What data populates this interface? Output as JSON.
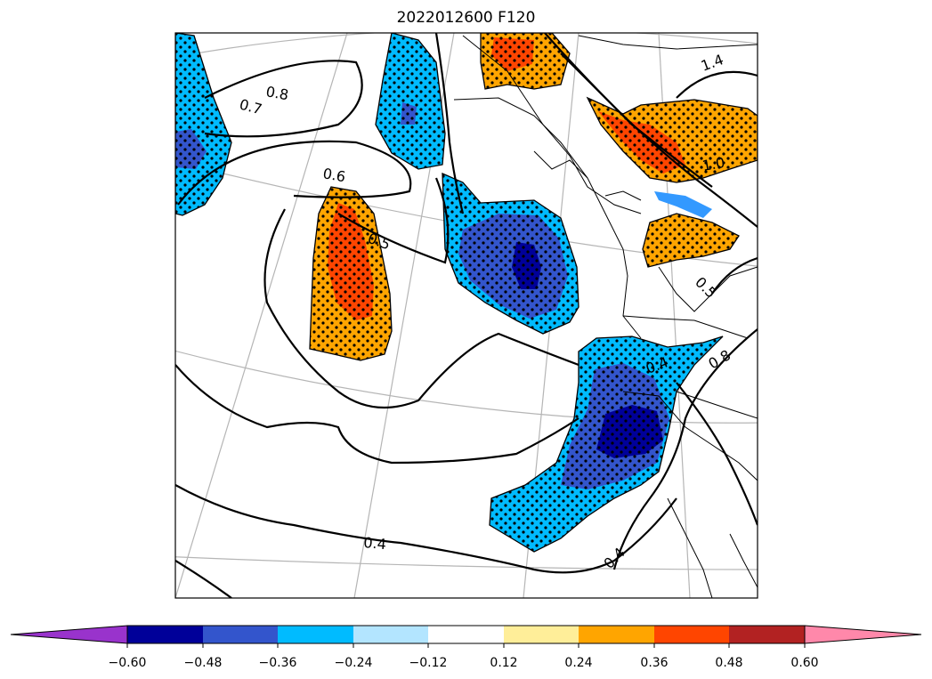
{
  "figure": {
    "title": "2022012600 F120"
  },
  "contour_labels": [
    {
      "text": "0.8"
    },
    {
      "text": "0.7"
    },
    {
      "text": "0.6"
    },
    {
      "text": "0.5"
    },
    {
      "text": "0.4"
    },
    {
      "text": "0.4"
    },
    {
      "text": "1.4"
    },
    {
      "text": "1.0"
    },
    {
      "text": "0.5"
    },
    {
      "text": "0.4"
    },
    {
      "text": "0.8"
    }
  ],
  "colorbar": {
    "colors": [
      "#9933cc",
      "#000099",
      "#3355cc",
      "#00bbff",
      "#b3e5ff",
      "#ffffff",
      "#ffee99",
      "#ffa500",
      "#ff4500",
      "#b22222",
      "#ff88aa"
    ],
    "ticks": [
      "−0.60",
      "−0.48",
      "−0.36",
      "−0.24",
      "−0.12",
      "0.12",
      "0.24",
      "0.36",
      "0.48",
      "0.60"
    ]
  },
  "colors": {
    "strong_negative": "#000099",
    "mid_negative": "#3355cc",
    "weak_negative": "#00bbff",
    "weak_positive": "#ffa500",
    "mid_positive": "#ff4500"
  }
}
